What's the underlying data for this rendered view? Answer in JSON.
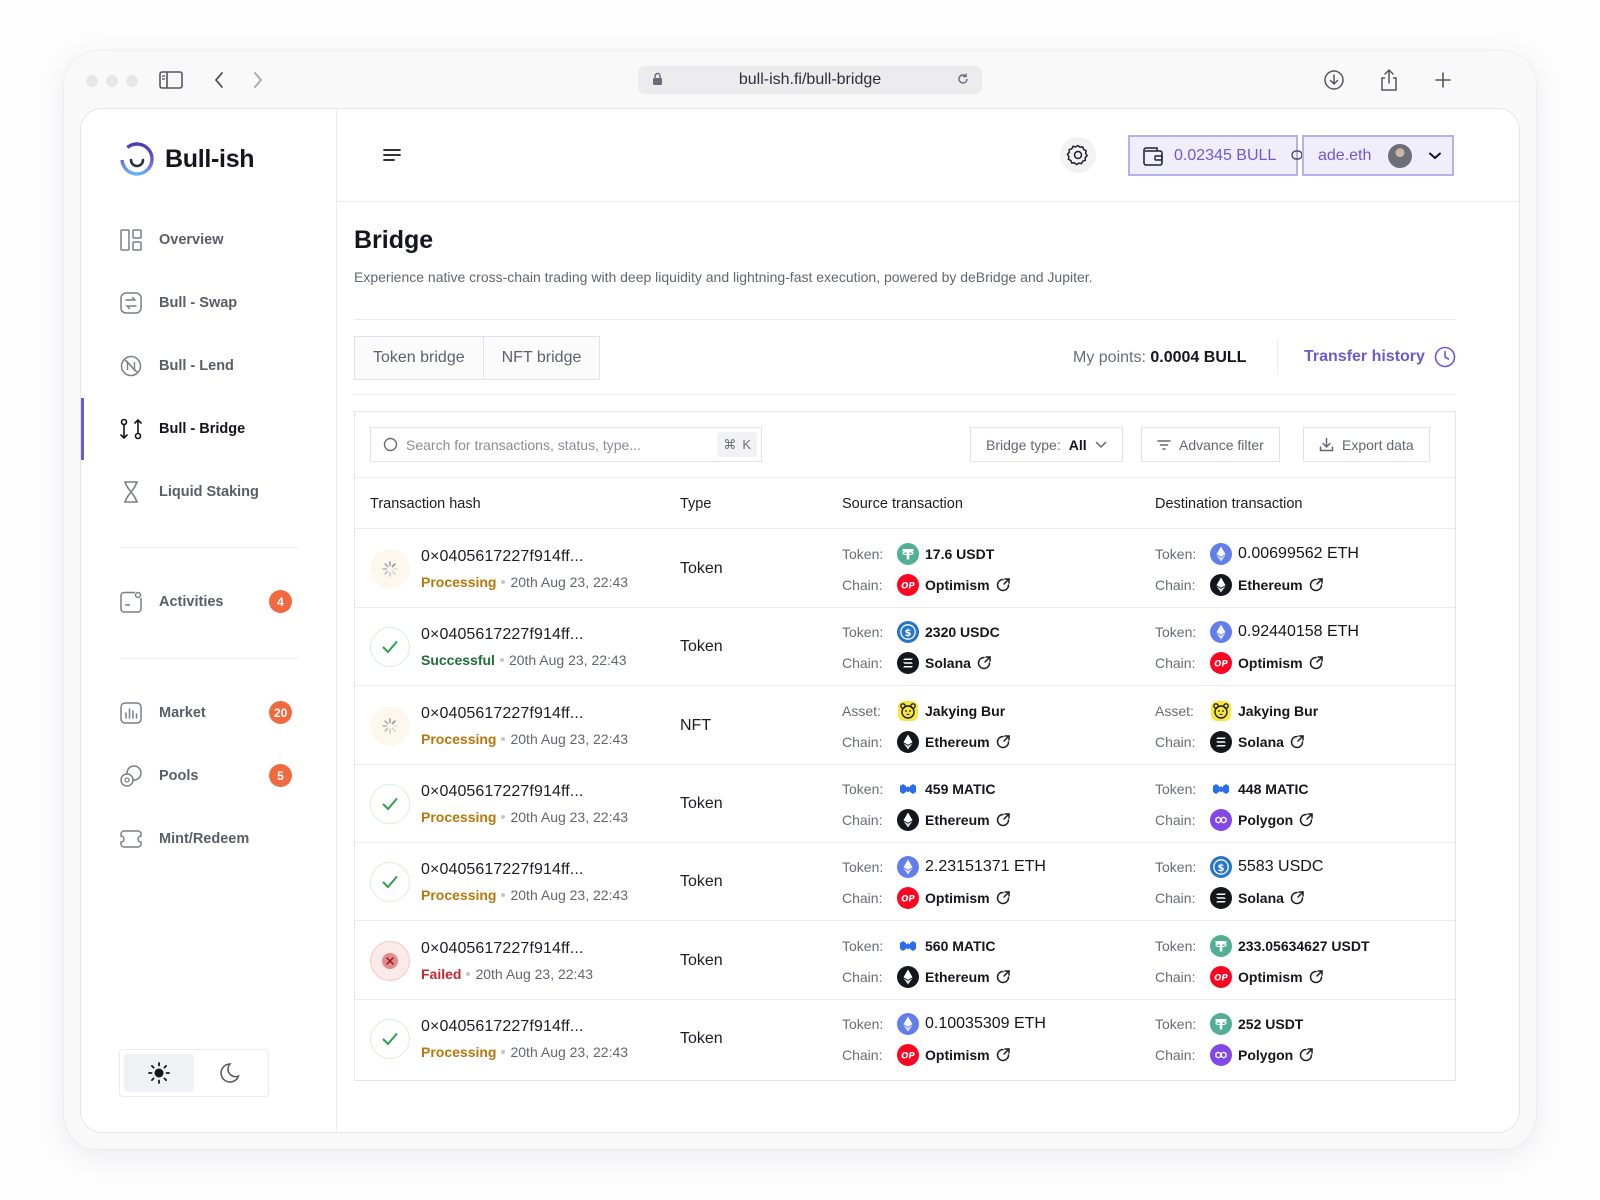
{
  "browser": {
    "url": "bull-ish.fi/bull-bridge"
  },
  "sidebar": {
    "brand": "Bull-ish",
    "items": [
      {
        "label": "Overview",
        "icon": "overview-icon"
      },
      {
        "label": "Bull - Swap",
        "icon": "swap-icon"
      },
      {
        "label": "Bull - Lend",
        "icon": "lend-icon"
      },
      {
        "label": "Bull - Bridge",
        "icon": "bridge-icon",
        "active": true
      },
      {
        "label": "Liquid Staking",
        "icon": "hourglass-icon"
      },
      {
        "label": "Activities",
        "icon": "activities-icon",
        "badge": "4"
      },
      {
        "label": "Market",
        "icon": "market-icon",
        "badge": "20"
      },
      {
        "label": "Pools",
        "icon": "pools-icon",
        "badge": "5"
      },
      {
        "label": "Mint/Redeem",
        "icon": "ticket-icon"
      }
    ],
    "theme": {
      "selected": "light"
    }
  },
  "header": {
    "wallet_balance": "0.02345 BULL",
    "account_name": "ade.eth"
  },
  "page": {
    "title": "Bridge",
    "subtitle": "Experience native cross-chain trading with deep liquidity and lightning-fast execution, powered by deBridge and Jupiter.",
    "tabs": [
      "Token bridge",
      "NFT bridge"
    ],
    "points_label": "My points:",
    "points_value": "0.0004 BULL",
    "transfer_history": "Transfer history"
  },
  "toolbar": {
    "search_placeholder": "Search for transactions, status, type...",
    "search_shortcut": "K",
    "bridge_type_label": "Bridge type:",
    "bridge_type_value": "All",
    "advance_filter": "Advance filter",
    "export_data": "Export data"
  },
  "table": {
    "columns": [
      "Transaction hash",
      "Type",
      "Source transaction",
      "Destination transaction"
    ],
    "rows": [
      {
        "hash": "0×0405617227f914ff...",
        "status": "Processing",
        "status_kind": "processing",
        "date": "20th Aug 23, 22:43",
        "type": "Token",
        "src_label": "Token:",
        "src_value": "17.6 USDT",
        "src_icon": "usdt",
        "src_big": false,
        "src_chain": "Optimism",
        "src_chain_icon": "optimism",
        "dst_label": "Token:",
        "dst_value": "0.00699562 ETH",
        "dst_icon": "eth",
        "dst_big": true,
        "dst_chain": "Ethereum",
        "dst_chain_icon": "ethereum"
      },
      {
        "hash": "0×0405617227f914ff...",
        "status": "Successful",
        "status_kind": "success",
        "date": "20th Aug 23, 22:43",
        "type": "Token",
        "src_label": "Token:",
        "src_value": "2320 USDC",
        "src_icon": "usdc",
        "src_big": false,
        "src_chain": "Solana",
        "src_chain_icon": "solana",
        "dst_label": "Token:",
        "dst_value": "0.92440158 ETH",
        "dst_icon": "eth",
        "dst_big": true,
        "dst_chain": "Optimism",
        "dst_chain_icon": "optimism"
      },
      {
        "hash": "0×0405617227f914ff...",
        "status": "Processing",
        "status_kind": "processing",
        "date": "20th Aug 23, 22:43",
        "type": "NFT",
        "src_label": "Asset:",
        "src_value": "Jakying Bur",
        "src_icon": "nft",
        "src_big": false,
        "src_chain": "Ethereum",
        "src_chain_icon": "ethereum",
        "dst_label": "Asset:",
        "dst_value": "Jakying Bur",
        "dst_icon": "nft",
        "dst_big": false,
        "dst_chain": "Solana",
        "dst_chain_icon": "solana"
      },
      {
        "hash": "0×0405617227f914ff...",
        "status": "Processing",
        "status_kind": "success-icon",
        "date": "20th Aug 23, 22:43",
        "type": "Token",
        "src_label": "Token:",
        "src_value": "459 MATIC",
        "src_icon": "matic",
        "src_big": false,
        "src_chain": "Ethereum",
        "src_chain_icon": "ethereum",
        "dst_label": "Token:",
        "dst_value": "448 MATIC",
        "dst_icon": "matic",
        "dst_big": false,
        "dst_chain": "Polygon",
        "dst_chain_icon": "polygon"
      },
      {
        "hash": "0×0405617227f914ff...",
        "status": "Processing",
        "status_kind": "success-icon",
        "date": "20th Aug 23, 22:43",
        "type": "Token",
        "src_label": "Token:",
        "src_value": "2.23151371 ETH",
        "src_icon": "eth",
        "src_big": true,
        "src_chain": "Optimism",
        "src_chain_icon": "optimism",
        "dst_label": "Token:",
        "dst_value": "5583 USDC",
        "dst_icon": "usdc",
        "dst_big": true,
        "dst_chain": "Solana",
        "dst_chain_icon": "solana"
      },
      {
        "hash": "0×0405617227f914ff...",
        "status": "Failed",
        "status_kind": "failed",
        "date": "20th Aug 23, 22:43",
        "type": "Token",
        "src_label": "Token:",
        "src_value": "560 MATIC",
        "src_icon": "matic",
        "src_big": false,
        "src_chain": "Ethereum",
        "src_chain_icon": "ethereum",
        "dst_label": "Token:",
        "dst_value": "233.05634627 USDT",
        "dst_icon": "usdt",
        "dst_big": false,
        "dst_chain": "Optimism",
        "dst_chain_icon": "optimism"
      },
      {
        "hash": "0×0405617227f914ff...",
        "status": "Processing",
        "status_kind": "success-icon",
        "date": "20th Aug 23, 22:43",
        "type": "Token",
        "src_label": "Token:",
        "src_value": "0.10035309 ETH",
        "src_icon": "eth",
        "src_big": true,
        "src_chain": "Optimism",
        "src_chain_icon": "optimism",
        "dst_label": "Token:",
        "dst_value": "252 USDT",
        "dst_icon": "usdt",
        "dst_big": false,
        "dst_chain": "Polygon",
        "dst_chain_icon": "polygon"
      }
    ],
    "chain_label": "Chain:"
  }
}
